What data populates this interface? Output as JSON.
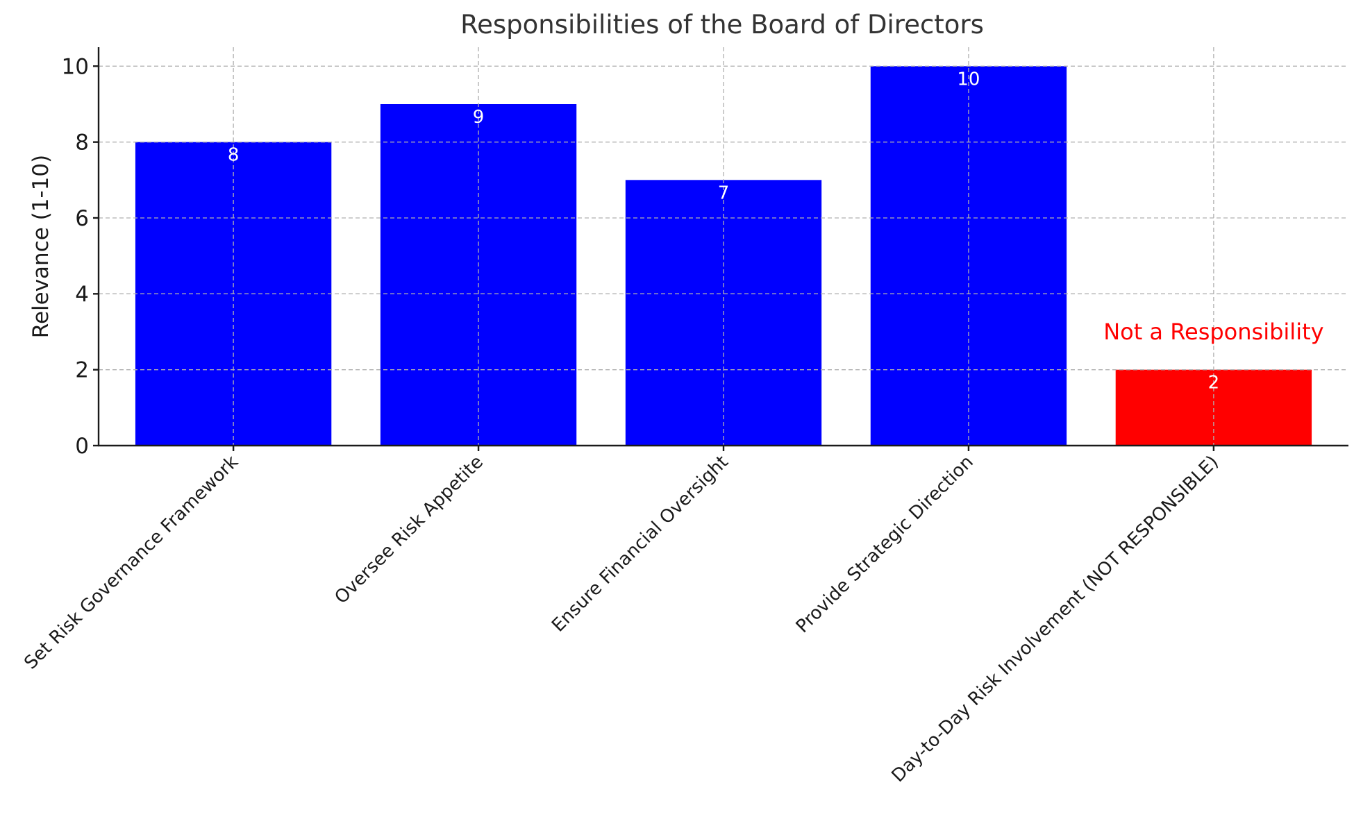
{
  "chart_data": {
    "type": "bar",
    "title": "Responsibilities of the Board of Directors",
    "xlabel": "",
    "ylabel": "Relevance (1-10)",
    "categories": [
      "Set Risk Governance Framework",
      "Oversee Risk Appetite",
      "Ensure Financial Oversight",
      "Provide Strategic Direction",
      "Day-to-Day Risk Involvement (NOT RESPONSIBLE)"
    ],
    "values": [
      8,
      9,
      7,
      10,
      2
    ],
    "value_labels": [
      "8",
      "9",
      "7",
      "10",
      "2"
    ],
    "bar_colors": [
      "#0000ff",
      "#0000ff",
      "#0000ff",
      "#0000ff",
      "#ff0000"
    ],
    "ylim": [
      0,
      10.5
    ],
    "yticks": [
      0,
      2,
      4,
      6,
      8,
      10
    ],
    "ytick_labels": [
      "0",
      "2",
      "4",
      "6",
      "8",
      "10"
    ],
    "grid": true,
    "annotations": [
      {
        "text": "Not a Responsibility",
        "category_index": 4,
        "y": 3,
        "color": "#ff0000"
      }
    ]
  }
}
